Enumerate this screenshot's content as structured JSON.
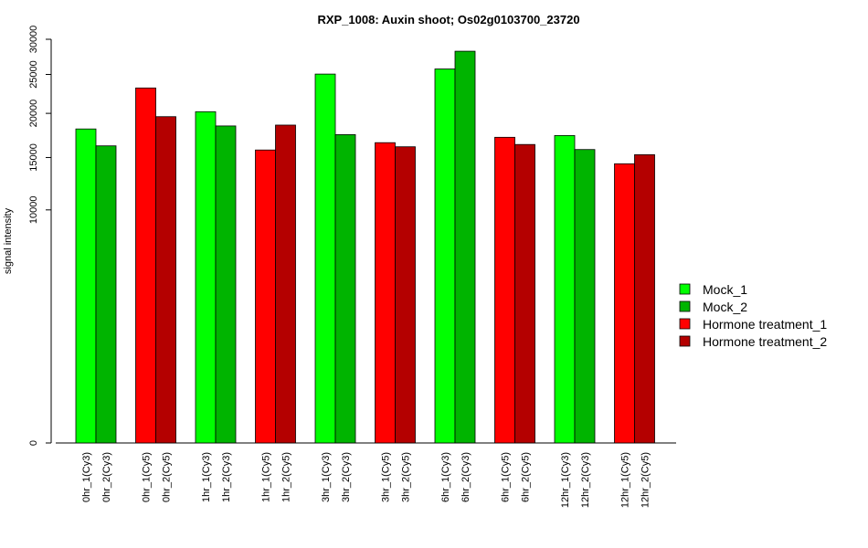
{
  "chart_data": {
    "type": "bar",
    "title": "RXP_1008: Auxin shoot; Os02g0103700_23720",
    "ylabel": "signal intensity",
    "xlabel": "",
    "ylim": [
      0,
      30000
    ],
    "y_scale": "sqrt",
    "yticks": [
      "0",
      "10000",
      "15000",
      "20000",
      "25000",
      "30000"
    ],
    "ytick_values": [
      0,
      10000,
      15000,
      20000,
      25000,
      30000
    ],
    "grid": false,
    "legend_position": "right",
    "legend": [
      {
        "name": "Mock_1",
        "color": "#00ff00"
      },
      {
        "name": "Mock_2",
        "color": "#00b400"
      },
      {
        "name": "Hormone treatment_1",
        "color": "#ff0000"
      },
      {
        "name": "Hormone treatment_2",
        "color": "#b40000"
      }
    ],
    "groups": [
      {
        "bars": [
          {
            "label": "0hr_1(Cy3)",
            "value": 18150,
            "color": "#00ff00"
          },
          {
            "label": "0hr_2(Cy3)",
            "value": 16250,
            "color": "#00b400"
          }
        ]
      },
      {
        "bars": [
          {
            "label": "0hr_1(Cy5)",
            "value": 23200,
            "color": "#ff0000"
          },
          {
            "label": "0hr_2(Cy5)",
            "value": 19600,
            "color": "#b40000"
          }
        ]
      },
      {
        "bars": [
          {
            "label": "1hr_1(Cy3)",
            "value": 20200,
            "color": "#00ff00"
          },
          {
            "label": "1hr_2(Cy3)",
            "value": 18500,
            "color": "#00b400"
          }
        ]
      },
      {
        "bars": [
          {
            "label": "1hr_1(Cy5)",
            "value": 15800,
            "color": "#ff0000"
          },
          {
            "label": "1hr_2(Cy5)",
            "value": 18600,
            "color": "#b40000"
          }
        ]
      },
      {
        "bars": [
          {
            "label": "3hr_1(Cy3)",
            "value": 25050,
            "color": "#00ff00"
          },
          {
            "label": "3hr_2(Cy3)",
            "value": 17500,
            "color": "#00b400"
          }
        ]
      },
      {
        "bars": [
          {
            "label": "3hr_1(Cy5)",
            "value": 16600,
            "color": "#ff0000"
          },
          {
            "label": "3hr_2(Cy5)",
            "value": 16150,
            "color": "#b40000"
          }
        ]
      },
      {
        "bars": [
          {
            "label": "6hr_1(Cy3)",
            "value": 25750,
            "color": "#00ff00"
          },
          {
            "label": "6hr_2(Cy3)",
            "value": 28250,
            "color": "#00b400"
          }
        ]
      },
      {
        "bars": [
          {
            "label": "6hr_1(Cy5)",
            "value": 17200,
            "color": "#ff0000"
          },
          {
            "label": "6hr_2(Cy5)",
            "value": 16400,
            "color": "#b40000"
          }
        ]
      },
      {
        "bars": [
          {
            "label": "12hr_1(Cy3)",
            "value": 17400,
            "color": "#00ff00"
          },
          {
            "label": "12hr_2(Cy3)",
            "value": 15850,
            "color": "#00b400"
          }
        ]
      },
      {
        "bars": [
          {
            "label": "12hr_1(Cy5)",
            "value": 14350,
            "color": "#ff0000"
          },
          {
            "label": "12hr_2(Cy5)",
            "value": 15300,
            "color": "#b40000"
          }
        ]
      }
    ]
  }
}
